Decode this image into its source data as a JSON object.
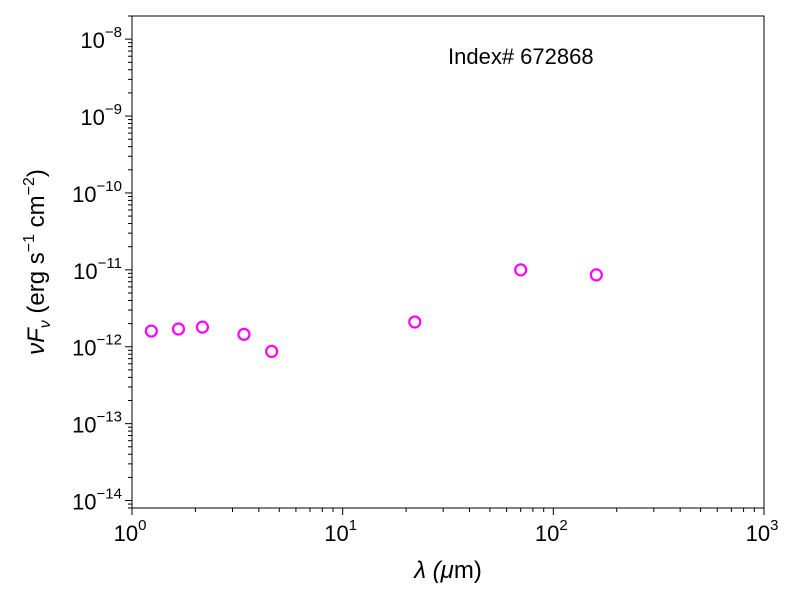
{
  "chart_data": {
    "type": "scatter",
    "annotation": "Index# 672868",
    "xlabel": {
      "main": "λ (",
      "sym": "μ",
      "rest": "m)"
    },
    "ylabel": {
      "nu": "ν",
      "F": "F",
      "sub": "ν",
      "unit1": " (erg s",
      "exp1": "−1",
      "unit2": " cm",
      "exp2": "−2",
      "unit3": ")"
    },
    "x_scale": "log",
    "y_scale": "log",
    "xlim": [
      1,
      1000
    ],
    "ylim": [
      8e-15,
      2e-08
    ],
    "x_ticks": [
      {
        "value": 1,
        "base": "10",
        "exp": "0"
      },
      {
        "value": 10,
        "base": "10",
        "exp": "1"
      },
      {
        "value": 100,
        "base": "10",
        "exp": "2"
      },
      {
        "value": 1000,
        "base": "10",
        "exp": "3"
      }
    ],
    "y_ticks": [
      {
        "value": 1e-14,
        "base": "10",
        "exp": "−14"
      },
      {
        "value": 1e-13,
        "base": "10",
        "exp": "−13"
      },
      {
        "value": 1e-12,
        "base": "10",
        "exp": "−12"
      },
      {
        "value": 1e-11,
        "base": "10",
        "exp": "−11"
      },
      {
        "value": 1e-10,
        "base": "10",
        "exp": "−10"
      },
      {
        "value": 1e-09,
        "base": "10",
        "exp": "−9"
      },
      {
        "value": 1e-08,
        "base": "10",
        "exp": "−8"
      }
    ],
    "series": [
      {
        "marker": "open-circle",
        "color": "#ff00ff",
        "points": [
          {
            "x": 1.235,
            "y": 1.6e-12
          },
          {
            "x": 1.662,
            "y": 1.7e-12
          },
          {
            "x": 2.159,
            "y": 1.8e-12
          },
          {
            "x": 3.4,
            "y": 1.45e-12
          },
          {
            "x": 4.6,
            "y": 8.7e-13
          },
          {
            "x": 22,
            "y": 2.1e-12
          },
          {
            "x": 70,
            "y": 1e-11
          },
          {
            "x": 160,
            "y": 8.6e-12
          }
        ]
      }
    ],
    "grid": false
  }
}
